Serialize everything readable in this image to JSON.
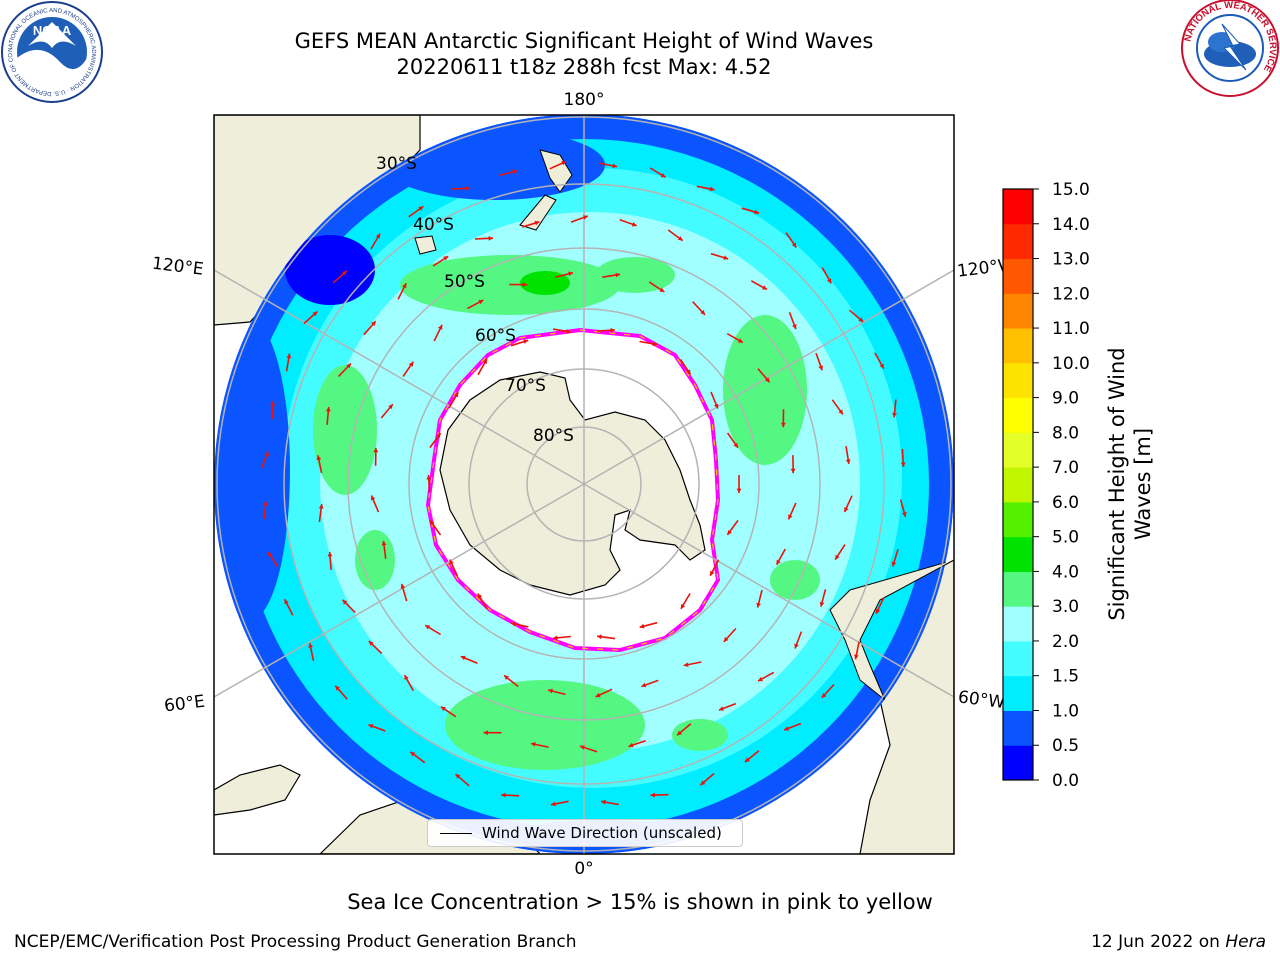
{
  "header": {
    "title_line1": "GEFS MEAN Antarctic Significant Height of Wind Waves",
    "title_line2": "20220611 t18z 288h fcst   Max: 4.52"
  },
  "logos": {
    "noaa_text": "NOAA",
    "noaa_ring": "NATIONAL OCEANIC AND ATMOSPHERIC ADMINISTRATION · U.S. DEPARTMENT OF COMMERCE",
    "nws_ring": "NATIONAL WEATHER SERVICE"
  },
  "map": {
    "longitude_labels": {
      "top": "180°",
      "bottom": "0°",
      "upper_left": "120°E",
      "upper_right": "120°W",
      "lower_left": "60°E",
      "lower_right": "60°W"
    },
    "latitude_labels": [
      "30°S",
      "40°S",
      "50°S",
      "60°S",
      "70°S",
      "80°S"
    ],
    "legend_label": "Wind Wave Direction (unscaled)",
    "colors": {
      "land": "#efeedb",
      "ice": "#ffffff",
      "grid": "#b4b4b4",
      "arrow": "#e8140c"
    }
  },
  "colorbar": {
    "label_line1": "Significant Height of Wind",
    "label_line2": "Waves [m]",
    "ticks": [
      "0.0",
      "0.5",
      "1.0",
      "1.5",
      "2.0",
      "3.0",
      "4.0",
      "5.0",
      "6.0",
      "7.0",
      "8.0",
      "9.0",
      "10.0",
      "11.0",
      "12.0",
      "13.0",
      "14.0",
      "15.0"
    ],
    "colors": [
      "#0000ff",
      "#0a55ff",
      "#00ecff",
      "#44fbff",
      "#a2ffff",
      "#54f782",
      "#00e300",
      "#55f000",
      "#c2f500",
      "#e3ff27",
      "#ffff00",
      "#fde300",
      "#ffc000",
      "#ff8600",
      "#ff5800",
      "#ff2a00",
      "#ff0000"
    ]
  },
  "footer": {
    "caption": "Sea Ice Concentration > 15% is shown in pink to yellow",
    "credit": "NCEP/EMC/Verification Post Processing Product Generation Branch",
    "date_prefix": "12 Jun 2022 on ",
    "date_host": "Hera"
  }
}
